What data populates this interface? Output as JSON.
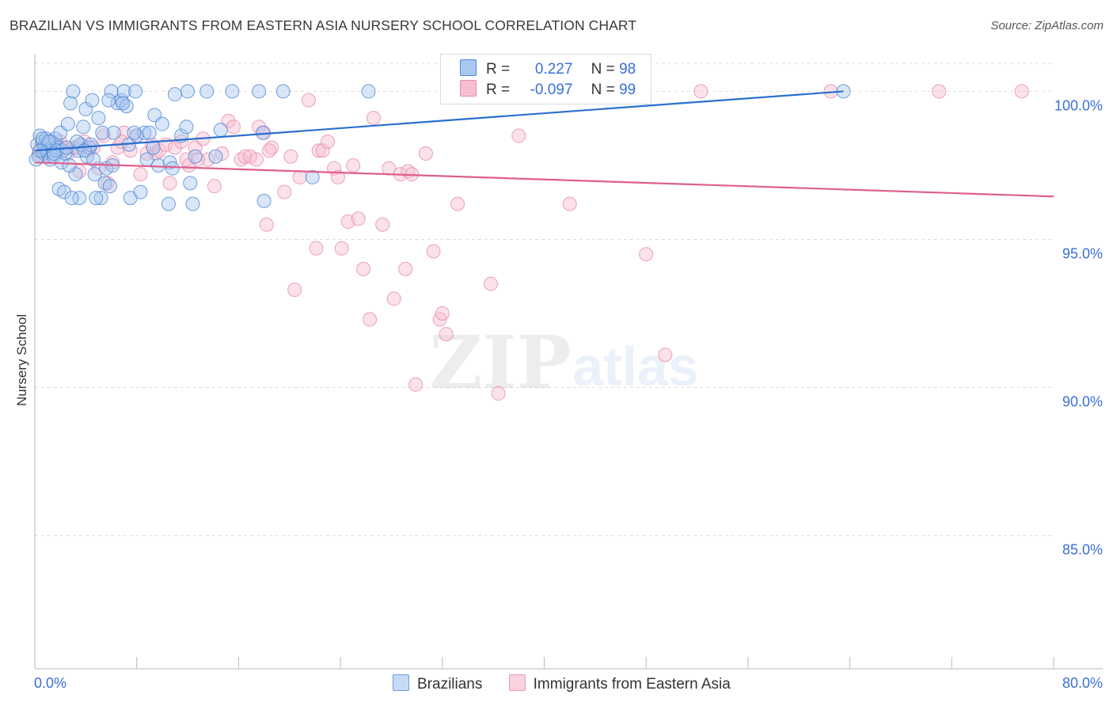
{
  "title": "BRAZILIAN VS IMMIGRANTS FROM EASTERN ASIA NURSERY SCHOOL CORRELATION CHART",
  "source": "Source: ZipAtlas.com",
  "watermark": {
    "zip": "ZIP",
    "atlas": "atlas"
  },
  "colors": {
    "blue_fill": "#a9c8f0",
    "blue_stroke": "#4f86d6",
    "blue_line": "#2a6fd0",
    "pink_fill": "#f6bfd0",
    "pink_stroke": "#e88aa8",
    "pink_line": "#e05f8c",
    "tick_text": "#3a6fd8",
    "grid": "#dddddd"
  },
  "legend": {
    "rows": [
      {
        "r_label": "R =",
        "r_value": "0.227",
        "n_label": "N =",
        "n_value": "98"
      },
      {
        "r_label": "R =",
        "r_value": "-0.097",
        "n_label": "N =",
        "n_value": "99"
      }
    ]
  },
  "chart_data": {
    "type": "scatter",
    "title": "BRAZILIAN VS IMMIGRANTS FROM EASTERN ASIA NURSERY SCHOOL CORRELATION CHART",
    "xlabel": "",
    "ylabel": "Nursery School",
    "xlim": [
      0,
      80
    ],
    "ylim": [
      80.5,
      101
    ],
    "x_tick_labels": [
      "0.0%",
      "80.0%"
    ],
    "y_ticks": [
      {
        "value": 100,
        "label": "100.0%"
      },
      {
        "value": 95,
        "label": "95.0%"
      },
      {
        "value": 90,
        "label": "90.0%"
      },
      {
        "value": 85,
        "label": "85.0%"
      }
    ],
    "series": [
      {
        "name": "Brazilians",
        "r": 0.227,
        "n": 98,
        "trend": {
          "x": [
            0,
            63.5
          ],
          "y": [
            98.0,
            100.0
          ]
        },
        "points": [
          [
            0.2,
            98.2
          ],
          [
            0.3,
            97.8
          ],
          [
            0.4,
            98.5
          ],
          [
            0.5,
            98.0
          ],
          [
            0.6,
            98.3
          ],
          [
            0.7,
            97.9
          ],
          [
            0.8,
            98.1
          ],
          [
            0.9,
            98.4
          ],
          [
            1.0,
            98.0
          ],
          [
            1.1,
            98.2
          ],
          [
            1.2,
            97.7
          ],
          [
            1.3,
            98.3
          ],
          [
            1.4,
            98.0
          ],
          [
            1.5,
            97.8
          ],
          [
            1.6,
            98.4
          ],
          [
            1.8,
            98.1
          ],
          [
            2.0,
            98.6
          ],
          [
            2.1,
            97.6
          ],
          [
            2.2,
            98.0
          ],
          [
            2.4,
            97.9
          ],
          [
            2.6,
            98.9
          ],
          [
            2.8,
            99.6
          ],
          [
            3.0,
            100.0
          ],
          [
            3.2,
            97.2
          ],
          [
            3.4,
            98.0
          ],
          [
            3.6,
            98.2
          ],
          [
            3.8,
            98.8
          ],
          [
            4.0,
            99.4
          ],
          [
            4.1,
            97.8
          ],
          [
            4.3,
            98.1
          ],
          [
            4.5,
            99.7
          ],
          [
            4.7,
            97.2
          ],
          [
            5.0,
            99.1
          ],
          [
            5.2,
            96.4
          ],
          [
            5.5,
            96.9
          ],
          [
            5.6,
            97.4
          ],
          [
            5.9,
            96.8
          ],
          [
            6.0,
            100.0
          ],
          [
            6.2,
            98.6
          ],
          [
            6.5,
            99.6
          ],
          [
            6.8,
            99.7
          ],
          [
            7.0,
            100.0
          ],
          [
            7.2,
            99.5
          ],
          [
            7.4,
            98.2
          ],
          [
            7.5,
            96.4
          ],
          [
            7.9,
            100.0
          ],
          [
            8.0,
            98.5
          ],
          [
            8.3,
            96.6
          ],
          [
            8.6,
            98.6
          ],
          [
            9.0,
            98.6
          ],
          [
            9.4,
            99.2
          ],
          [
            9.7,
            97.5
          ],
          [
            10.0,
            98.9
          ],
          [
            10.5,
            96.2
          ],
          [
            10.6,
            97.6
          ],
          [
            10.8,
            97.4
          ],
          [
            11.0,
            99.9
          ],
          [
            11.5,
            98.5
          ],
          [
            11.9,
            98.8
          ],
          [
            12.0,
            100.0
          ],
          [
            12.2,
            96.9
          ],
          [
            12.4,
            96.2
          ],
          [
            12.6,
            97.8
          ],
          [
            13.5,
            100.0
          ],
          [
            14.2,
            97.8
          ],
          [
            14.6,
            98.7
          ],
          [
            15.5,
            100.0
          ],
          [
            17.6,
            100.0
          ],
          [
            17.9,
            98.6
          ],
          [
            18.0,
            96.3
          ],
          [
            19.5,
            100.0
          ],
          [
            21.8,
            97.1
          ],
          [
            26.2,
            100.0
          ],
          [
            63.5,
            100.0
          ],
          [
            1.9,
            96.7
          ],
          [
            2.3,
            96.6
          ],
          [
            3.5,
            96.4
          ],
          [
            4.8,
            96.4
          ],
          [
            2.7,
            97.5
          ],
          [
            0.1,
            97.7
          ],
          [
            0.6,
            98.4
          ],
          [
            1.1,
            98.3
          ],
          [
            1.7,
            98.0
          ],
          [
            3.3,
            98.3
          ],
          [
            4.4,
            98.2
          ],
          [
            5.3,
            98.6
          ],
          [
            6.1,
            97.5
          ],
          [
            6.9,
            99.6
          ],
          [
            7.8,
            98.6
          ],
          [
            8.8,
            97.7
          ],
          [
            0.4,
            98.0
          ],
          [
            1.5,
            97.9
          ],
          [
            2.5,
            98.1
          ],
          [
            3.9,
            98.0
          ],
          [
            5.8,
            99.7
          ],
          [
            9.3,
            98.1
          ],
          [
            2.9,
            96.4
          ],
          [
            4.6,
            97.7
          ]
        ]
      },
      {
        "name": "Immigrants from Eastern Asia",
        "r": -0.097,
        "n": 99,
        "trend": {
          "x": [
            0,
            80
          ],
          "y": [
            97.6,
            96.45
          ]
        },
        "points": [
          [
            0.3,
            97.9
          ],
          [
            0.5,
            98.1
          ],
          [
            0.7,
            98.2
          ],
          [
            0.9,
            98.0
          ],
          [
            1.1,
            98.3
          ],
          [
            1.3,
            97.8
          ],
          [
            1.5,
            98.1
          ],
          [
            1.8,
            98.2
          ],
          [
            2.2,
            98.1
          ],
          [
            2.6,
            97.9
          ],
          [
            3.0,
            98.1
          ],
          [
            3.5,
            97.3
          ],
          [
            3.9,
            98.3
          ],
          [
            4.2,
            98.0
          ],
          [
            4.6,
            98.1
          ],
          [
            5.0,
            97.4
          ],
          [
            5.4,
            98.5
          ],
          [
            5.7,
            96.9
          ],
          [
            6.1,
            97.6
          ],
          [
            6.5,
            98.1
          ],
          [
            7.0,
            98.6
          ],
          [
            7.5,
            98.0
          ],
          [
            8.0,
            98.5
          ],
          [
            8.3,
            97.2
          ],
          [
            8.8,
            97.9
          ],
          [
            9.2,
            98.2
          ],
          [
            9.5,
            97.9
          ],
          [
            9.8,
            98.0
          ],
          [
            10.3,
            98.2
          ],
          [
            10.6,
            96.9
          ],
          [
            11.0,
            98.1
          ],
          [
            11.5,
            98.3
          ],
          [
            11.9,
            97.7
          ],
          [
            12.1,
            97.5
          ],
          [
            12.6,
            98.1
          ],
          [
            13.2,
            98.4
          ],
          [
            13.6,
            97.7
          ],
          [
            14.1,
            96.8
          ],
          [
            14.7,
            97.9
          ],
          [
            15.2,
            99.0
          ],
          [
            15.6,
            98.8
          ],
          [
            16.2,
            97.7
          ],
          [
            16.5,
            97.8
          ],
          [
            16.9,
            97.8
          ],
          [
            17.4,
            97.7
          ],
          [
            17.6,
            98.8
          ],
          [
            18.0,
            98.6
          ],
          [
            18.2,
            95.5
          ],
          [
            18.6,
            98.1
          ],
          [
            19.6,
            96.6
          ],
          [
            20.1,
            97.8
          ],
          [
            20.4,
            93.3
          ],
          [
            20.8,
            97.1
          ],
          [
            21.5,
            99.7
          ],
          [
            22.1,
            94.7
          ],
          [
            22.3,
            98.0
          ],
          [
            22.6,
            98.0
          ],
          [
            23.0,
            98.3
          ],
          [
            23.5,
            97.4
          ],
          [
            23.8,
            97.1
          ],
          [
            24.1,
            94.7
          ],
          [
            24.6,
            95.6
          ],
          [
            25.0,
            97.5
          ],
          [
            25.4,
            95.7
          ],
          [
            25.8,
            94.0
          ],
          [
            26.3,
            92.3
          ],
          [
            26.6,
            99.1
          ],
          [
            27.3,
            95.5
          ],
          [
            27.8,
            97.4
          ],
          [
            28.2,
            93.0
          ],
          [
            28.7,
            97.2
          ],
          [
            29.1,
            94.0
          ],
          [
            29.3,
            97.3
          ],
          [
            29.6,
            97.2
          ],
          [
            29.9,
            90.1
          ],
          [
            30.7,
            97.9
          ],
          [
            31.3,
            94.6
          ],
          [
            31.8,
            92.3
          ],
          [
            32.0,
            92.5
          ],
          [
            32.3,
            91.8
          ],
          [
            33.2,
            96.2
          ],
          [
            35.8,
            93.5
          ],
          [
            36.4,
            89.8
          ],
          [
            36.8,
            100.0
          ],
          [
            38.0,
            98.5
          ],
          [
            42.0,
            96.2
          ],
          [
            43.6,
            100.0
          ],
          [
            48.0,
            94.5
          ],
          [
            49.5,
            91.1
          ],
          [
            52.3,
            100.0
          ],
          [
            62.5,
            100.0
          ],
          [
            71.0,
            100.0
          ],
          [
            77.5,
            100.0
          ],
          [
            0.8,
            97.9
          ],
          [
            2.0,
            98.3
          ],
          [
            3.3,
            98.1
          ],
          [
            6.8,
            98.3
          ],
          [
            12.8,
            97.7
          ],
          [
            18.4,
            98.0
          ]
        ]
      }
    ]
  },
  "bottom_legend": [
    "Brazilians",
    "Immigrants from Eastern Asia"
  ]
}
